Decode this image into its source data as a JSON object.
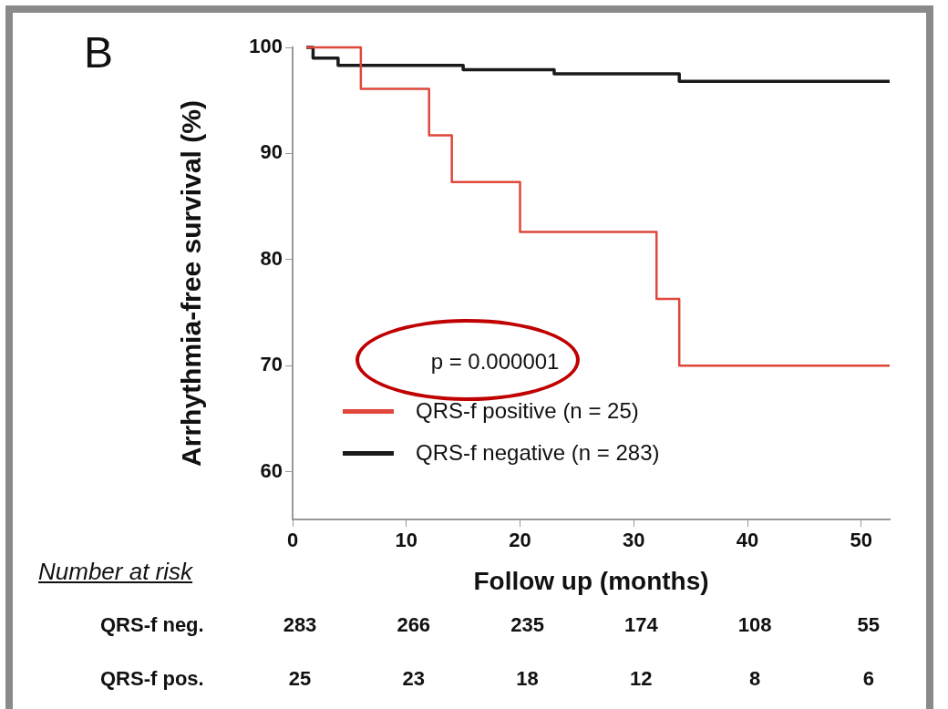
{
  "chart_data": {
    "type": "step",
    "title": "B",
    "xlabel": "Follow up (months)",
    "ylabel": "Arrhythmia-free survival (%)",
    "xlim": [
      0,
      52.5
    ],
    "ylim": [
      55.5,
      100
    ],
    "xticks": [
      0,
      10,
      20,
      30,
      40,
      50
    ],
    "yticks": [
      60,
      70,
      80,
      90,
      100
    ],
    "grid": false,
    "legend": "bottom left",
    "marker": "none",
    "line_style": "solid",
    "series": [
      {
        "name": "QRS-f positive  (n = 25)",
        "color": "#e0473a",
        "x": [
          1.2,
          6,
          12,
          14,
          20,
          32,
          34,
          52.5
        ],
        "values": [
          100,
          96.1,
          91.7,
          87.3,
          82.6,
          76.3,
          70,
          70
        ]
      },
      {
        "name": "QRS-f negative  (n = 283)",
        "color": "#1a1a1a",
        "x": [
          1.2,
          1.8,
          4,
          15,
          23,
          34,
          52.5
        ],
        "values": [
          100,
          99,
          98.3,
          97.9,
          97.5,
          96.8,
          96.8
        ]
      }
    ],
    "annotations": [
      "p = 0.000001",
      "Number at risk",
      "QRS-f neg.",
      "283",
      "266",
      "235",
      "174",
      "108",
      "55",
      "QRS-f pos.",
      "25",
      "23",
      "18",
      "12",
      "8",
      "6"
    ]
  }
}
